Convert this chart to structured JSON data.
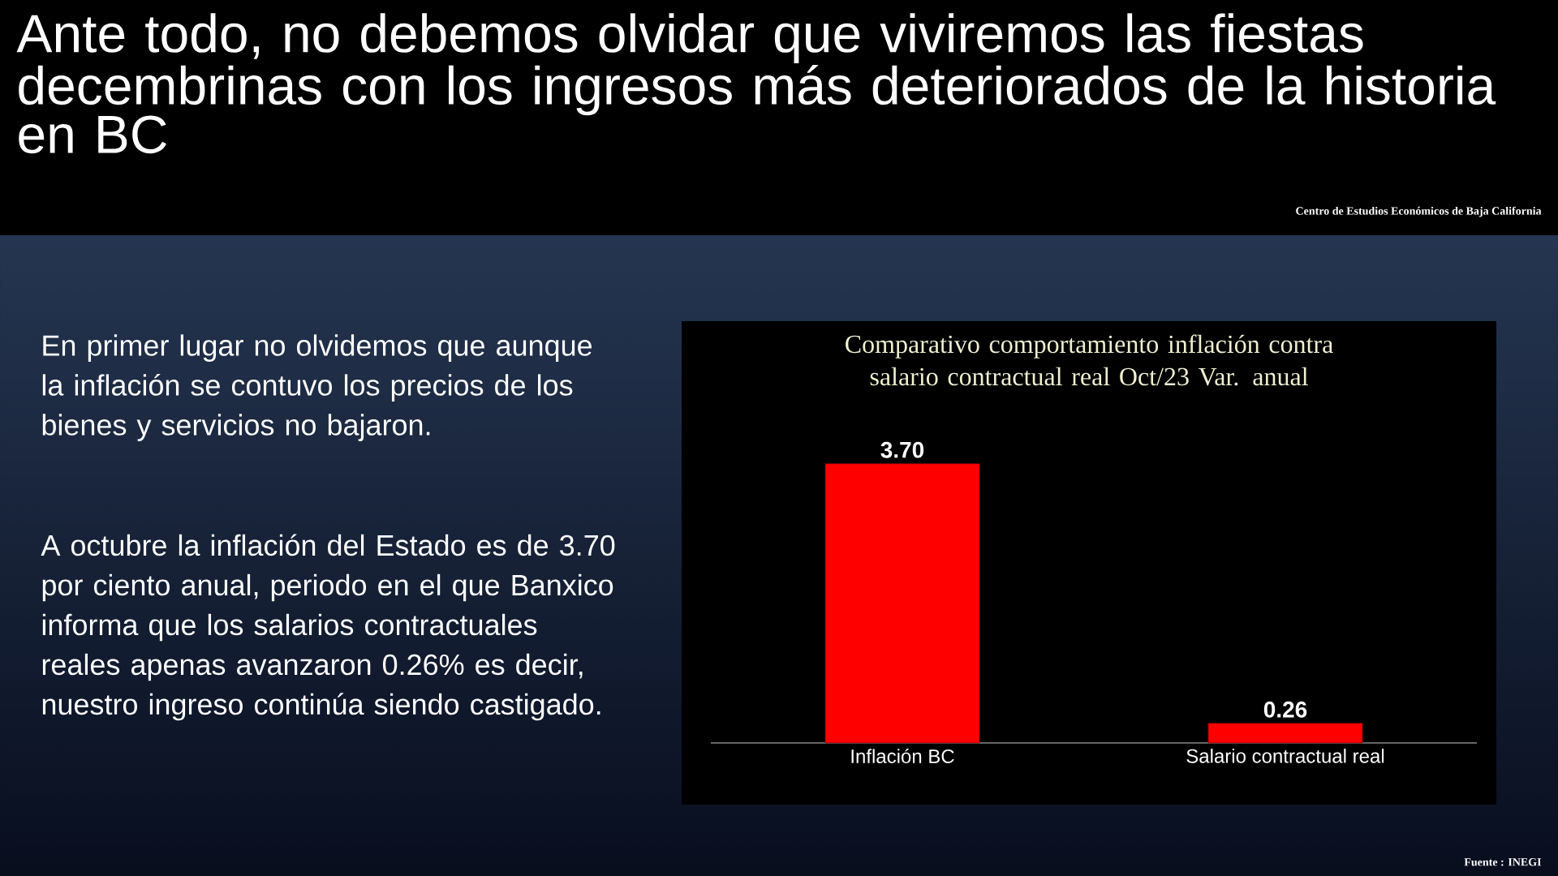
{
  "chart_data": {
    "type": "bar",
    "title": "Comparativo comportamiento inflación contra salario contractual real Oct/23 Var. anual",
    "categories": [
      "Inflación BC",
      "Salario contractual real"
    ],
    "values": [
      3.7,
      0.26
    ],
    "value_labels": [
      "3.70",
      "0.26"
    ],
    "color": "#ff0000",
    "annotations": [
      "Ante todo, no debemos olvidar que viviremos las fiestas decembrinas con los ingresos más deteriorados de la historia en BC",
      "Centro de Estudios  Económicos  de  Baja California",
      "En primer lugar no olvidemos que aunque la inflación se contuvo los precios de los bienes y servicios no bajaron.",
      "A octubre la inflación del Estado es de 3.70 por ciento anual, periodo en el que Banxico informa que los salarios contractuales reales apenas avanzaron 0.26% es decir, nuestro ingreso continúa siendo castigado.",
      "Fuente : INEGI"
    ]
  }
}
